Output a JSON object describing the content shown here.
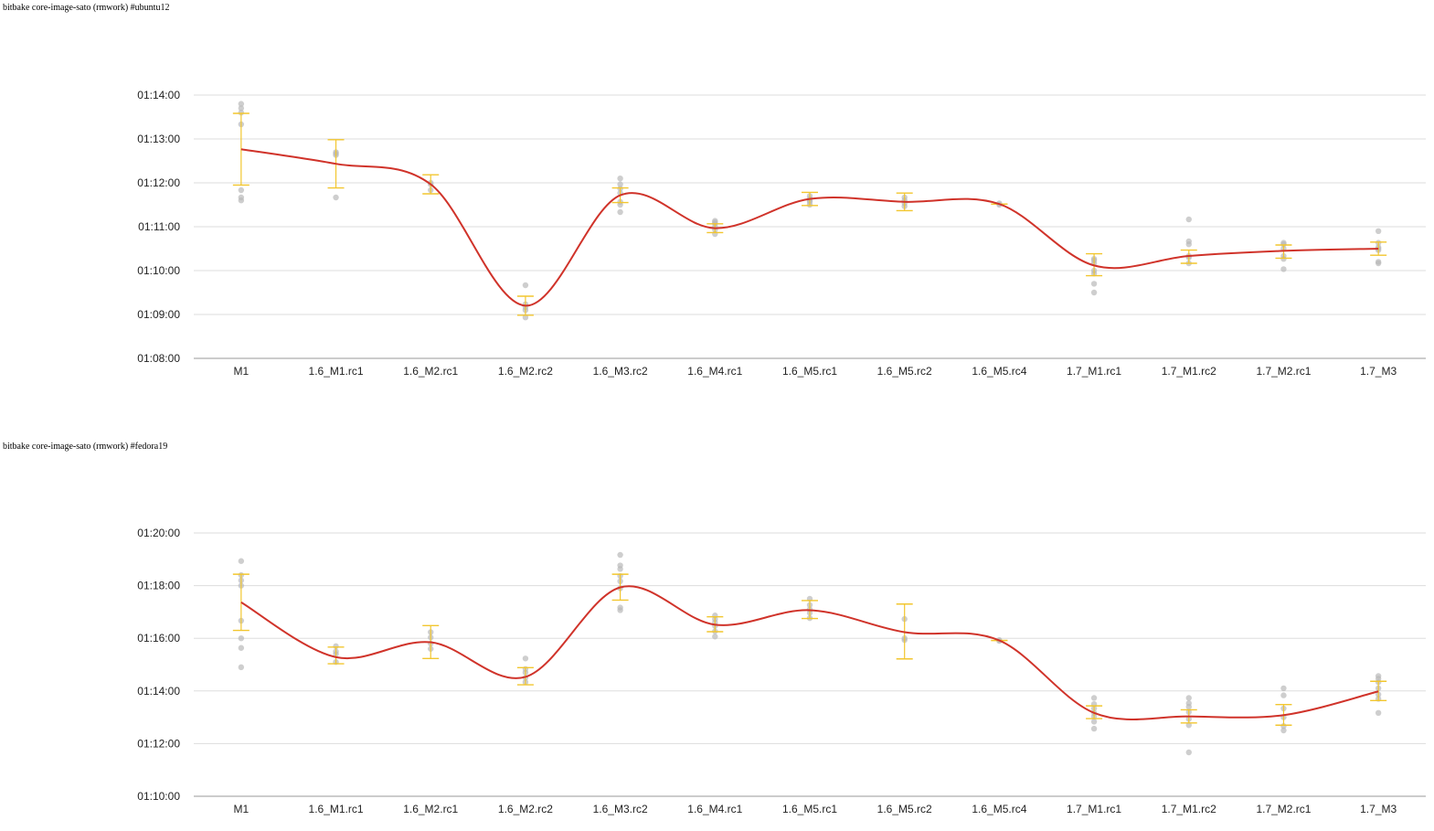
{
  "chart_data": [
    {
      "type": "line",
      "title": "bitbake core-image-sato (rmwork) #ubuntu12",
      "categories": [
        "M1",
        "1.6_M1.rc1",
        "1.6_M2.rc1",
        "1.6_M2.rc2",
        "1.6_M3.rc2",
        "1.6_M4.rc1",
        "1.6_M5.rc1",
        "1.6_M5.rc2",
        "1.6_M5.rc4",
        "1.7_M1.rc1",
        "1.7_M1.rc2",
        "1.7_M2.rc1",
        "1.7_M3"
      ],
      "y_ticks": [
        "01:08:00",
        "01:09:00",
        "01:10:00",
        "01:11:00",
        "01:12:00",
        "01:13:00",
        "01:14:00"
      ],
      "ylim": [
        "01:08:00",
        "01:14:00"
      ],
      "grid": true,
      "series": [
        {
          "color": "#d0332a",
          "values": [
            "01:12:46",
            "01:12:26",
            "01:11:58",
            "01:09:12",
            "01:11:43",
            "01:10:58",
            "01:11:38",
            "01:11:34",
            "01:11:31",
            "01:10:07",
            "01:10:20",
            "01:10:27",
            "01:10:30"
          ],
          "error_low": [
            "01:11:57",
            "01:11:53",
            "01:11:45",
            "01:08:59",
            "01:11:33",
            "01:10:52",
            "01:11:29",
            "01:11:22",
            "01:11:31",
            "01:09:53",
            "01:10:10",
            "01:10:17",
            "01:10:21"
          ],
          "error_high": [
            "01:13:35",
            "01:12:59",
            "01:12:11",
            "01:09:25",
            "01:11:53",
            "01:11:04",
            "01:11:47",
            "01:11:46",
            "01:11:31",
            "01:10:23",
            "01:10:28",
            "01:10:35",
            "01:10:39"
          ],
          "error_color": "#f2c62e"
        }
      ],
      "samples": [
        [
          "01:13:48",
          "01:13:42",
          "01:13:36",
          "01:13:20",
          "01:11:50",
          "01:11:40",
          "01:11:36"
        ],
        [
          "01:12:42",
          "01:12:40",
          "01:12:38",
          "01:11:40"
        ],
        [
          "01:12:00",
          "01:11:58",
          "01:11:50"
        ],
        [
          "01:09:40",
          "01:09:14",
          "01:09:10",
          "01:09:06",
          "01:08:56"
        ],
        [
          "01:12:06",
          "01:11:58",
          "01:11:52",
          "01:11:46",
          "01:11:34",
          "01:11:30",
          "01:11:20"
        ],
        [
          "01:11:08",
          "01:11:06",
          "01:11:04",
          "01:11:00",
          "01:10:56",
          "01:10:50"
        ],
        [
          "01:11:42",
          "01:11:38",
          "01:11:36",
          "01:11:34",
          "01:11:30"
        ],
        [
          "01:11:40",
          "01:11:36",
          "01:11:32",
          "01:11:28"
        ],
        [
          "01:11:32",
          "01:11:30"
        ],
        [
          "01:10:16",
          "01:10:14",
          "01:10:10",
          "01:10:00",
          "01:09:56",
          "01:09:42",
          "01:09:30"
        ],
        [
          "01:11:10",
          "01:10:40",
          "01:10:36",
          "01:10:20",
          "01:10:18",
          "01:10:10"
        ],
        [
          "01:10:38",
          "01:10:36",
          "01:10:30",
          "01:10:20",
          "01:10:16",
          "01:10:02"
        ],
        [
          "01:10:54",
          "01:10:38",
          "01:10:32",
          "01:10:30",
          "01:10:28",
          "01:10:12",
          "01:10:10"
        ]
      ]
    },
    {
      "type": "line",
      "title": "bitbake core-image-sato (rmwork) #fedora19",
      "categories": [
        "M1",
        "1.6_M1.rc1",
        "1.6_M2.rc1",
        "1.6_M2.rc2",
        "1.6_M3.rc2",
        "1.6_M4.rc1",
        "1.6_M5.rc1",
        "1.6_M5.rc2",
        "1.6_M5.rc4",
        "1.7_M1.rc1",
        "1.7_M1.rc2",
        "1.7_M2.rc1",
        "1.7_M3"
      ],
      "y_ticks": [
        "01:10:00",
        "01:12:00",
        "01:14:00",
        "01:16:00",
        "01:18:00",
        "01:20:00"
      ],
      "ylim": [
        "01:10:00",
        "01:20:00"
      ],
      "grid": true,
      "series": [
        {
          "color": "#d0332a",
          "values": [
            "01:17:22",
            "01:15:17",
            "01:15:51",
            "01:14:32",
            "01:17:56",
            "01:16:31",
            "01:17:04",
            "01:16:14",
            "01:15:55",
            "01:13:10",
            "01:13:02",
            "01:13:05",
            "01:13:59"
          ],
          "error_low": [
            "01:16:18",
            "01:15:02",
            "01:15:14",
            "01:14:14",
            "01:17:27",
            "01:16:15",
            "01:16:45",
            "01:15:13",
            "01:15:55",
            "01:12:57",
            "01:12:47",
            "01:12:42",
            "01:13:38"
          ],
          "error_high": [
            "01:18:26",
            "01:15:40",
            "01:16:29",
            "01:14:53",
            "01:18:26",
            "01:16:49",
            "01:17:26",
            "01:17:18",
            "01:15:55",
            "01:13:26",
            "01:13:17",
            "01:13:29",
            "01:14:22"
          ],
          "error_color": "#f2c62e"
        }
      ],
      "samples": [
        [
          "01:18:56",
          "01:18:24",
          "01:18:12",
          "01:18:00",
          "01:16:40",
          "01:16:00",
          "01:15:38",
          "01:14:54"
        ],
        [
          "01:15:42",
          "01:15:30",
          "01:15:24",
          "01:15:06"
        ],
        [
          "01:16:14",
          "01:16:02",
          "01:15:48",
          "01:15:36"
        ],
        [
          "01:15:14",
          "01:14:50",
          "01:14:42",
          "01:14:30",
          "01:14:20"
        ],
        [
          "01:19:10",
          "01:18:46",
          "01:18:38",
          "01:18:22",
          "01:18:10",
          "01:17:54",
          "01:17:10",
          "01:17:04"
        ],
        [
          "01:16:52",
          "01:16:44",
          "01:16:36",
          "01:16:28",
          "01:16:16",
          "01:16:04"
        ],
        [
          "01:17:30",
          "01:17:16",
          "01:17:06",
          "01:16:58",
          "01:16:46"
        ],
        [
          "01:16:44",
          "01:16:00",
          "01:15:56"
        ],
        [
          "01:15:56",
          "01:15:54"
        ],
        [
          "01:13:44",
          "01:13:30",
          "01:13:20",
          "01:13:10",
          "01:13:02",
          "01:12:50",
          "01:12:34"
        ],
        [
          "01:13:44",
          "01:13:32",
          "01:13:24",
          "01:13:12",
          "01:12:56",
          "01:12:42",
          "01:11:40"
        ],
        [
          "01:14:06",
          "01:13:50",
          "01:13:20",
          "01:13:00",
          "01:12:40",
          "01:12:30"
        ],
        [
          "01:14:34",
          "01:14:28",
          "01:14:20",
          "01:14:06",
          "01:13:52",
          "01:13:42",
          "01:13:10"
        ]
      ]
    }
  ]
}
